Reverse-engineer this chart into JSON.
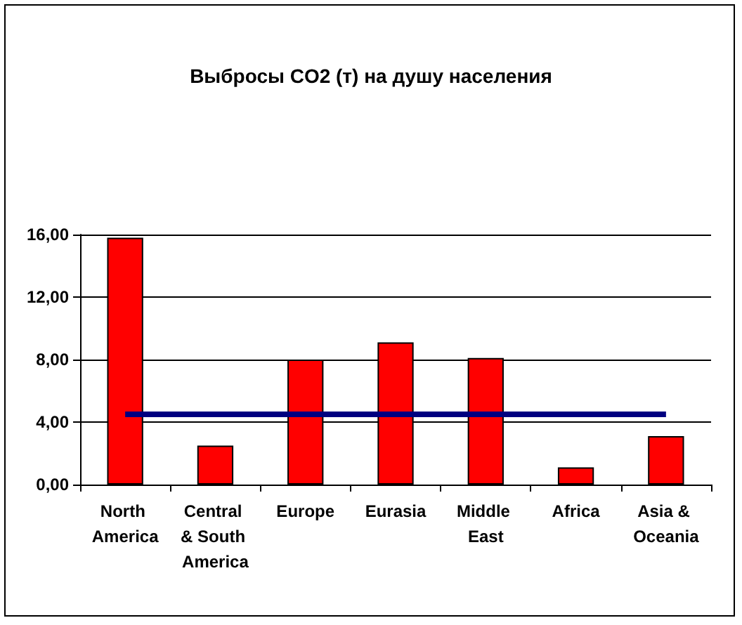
{
  "chart_data": {
    "type": "bar",
    "title": "Выбросы CO2 (т) на душу населения",
    "categories": [
      "North America",
      "Central & South America",
      "Europe",
      "Eurasia",
      "Middle East",
      "Africa",
      "Asia & Oceania"
    ],
    "series": [
      {
        "color": "#ff0000",
        "values": [
          15.8,
          2.5,
          8.0,
          9.1,
          8.1,
          1.1,
          3.1
        ]
      },
      {
        "type": "line",
        "color": "#000080",
        "values": [
          4.5,
          4.5,
          4.5,
          4.5,
          4.5,
          4.5,
          4.5
        ]
      }
    ],
    "ylim": [
      0,
      16
    ],
    "yticks": [
      {
        "value": 0,
        "label": "0,00"
      },
      {
        "value": 4,
        "label": "4,00"
      },
      {
        "value": 8,
        "label": "8,00"
      },
      {
        "value": 12,
        "label": "12,00"
      },
      {
        "value": 16,
        "label": "16,00"
      }
    ],
    "grid": "y",
    "marker": "none"
  }
}
